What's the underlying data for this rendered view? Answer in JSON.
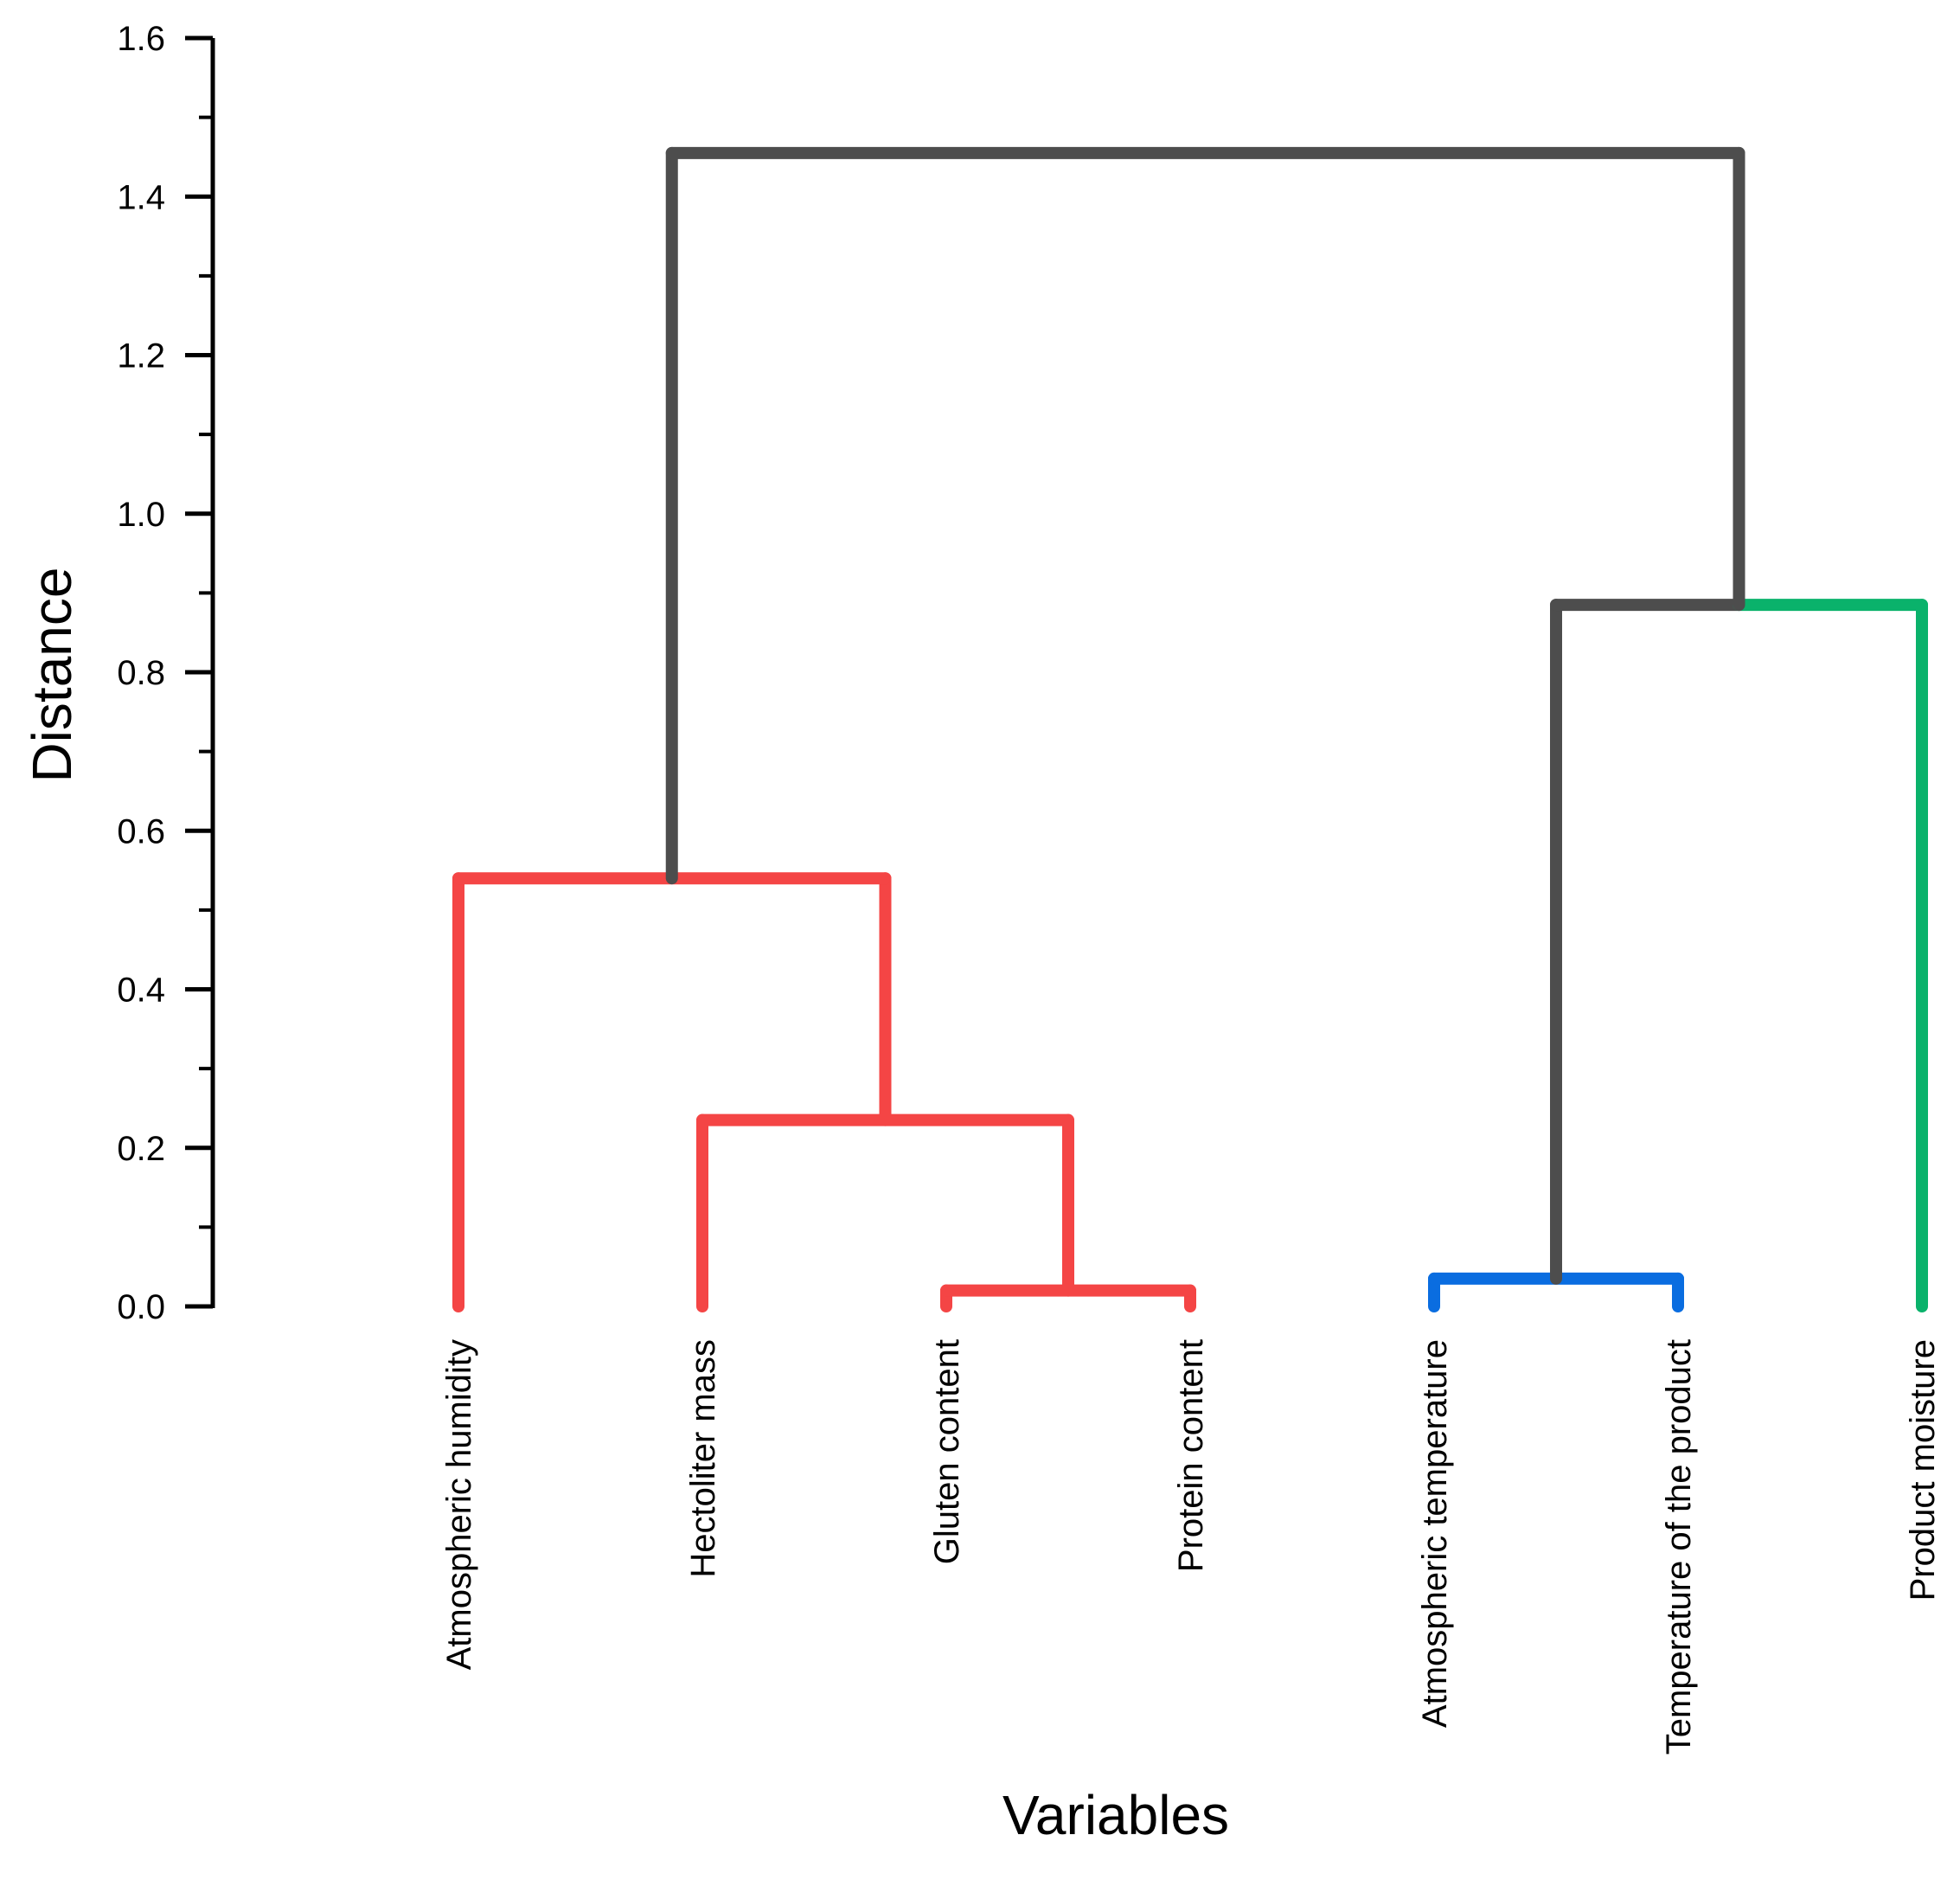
{
  "chart_data": {
    "type": "dendrogram",
    "title": "",
    "xlabel": "Variables",
    "ylabel": "Distance",
    "ylim": [
      0,
      1.6
    ],
    "yticks": [
      0.0,
      0.2,
      0.4,
      0.6,
      0.8,
      1.0,
      1.2,
      1.4,
      1.6
    ],
    "ytick_labels": [
      "0.0",
      "0.2",
      "0.4",
      "0.6",
      "0.8",
      "1.0",
      "1.2",
      "1.4",
      "1.6"
    ],
    "y_minor_tick_step": 0.1,
    "leaves": [
      "Atmospheric humidity",
      "Hectoliter mass",
      "Gluten content",
      "Protein content",
      "Atmospheric temperature",
      "Temperature of the product",
      "Product moisture"
    ],
    "merges": [
      {
        "left": "L2",
        "right": "L3",
        "height": 0.02,
        "color": "#f44545"
      },
      {
        "left": "L1",
        "right": "M0",
        "height": 0.235,
        "color": "#f44545"
      },
      {
        "left": "L0",
        "right": "M1",
        "height": 0.54,
        "color": "#f44545"
      },
      {
        "left": "L4",
        "right": "L5",
        "height": 0.035,
        "color": "#0a6de0"
      },
      {
        "left": "M3",
        "right": "L6",
        "height": 0.885,
        "color": "#4d4d4d",
        "right_color": "#0ab26b"
      },
      {
        "left": "M2",
        "right": "M4",
        "height": 1.455,
        "color": "#4d4d4d"
      }
    ],
    "colors": {
      "cluster_red": "#f44545",
      "cluster_blue": "#0a6de0",
      "cluster_green": "#0ab26b",
      "link_gray": "#4d4d4d",
      "axis": "#000000"
    }
  }
}
